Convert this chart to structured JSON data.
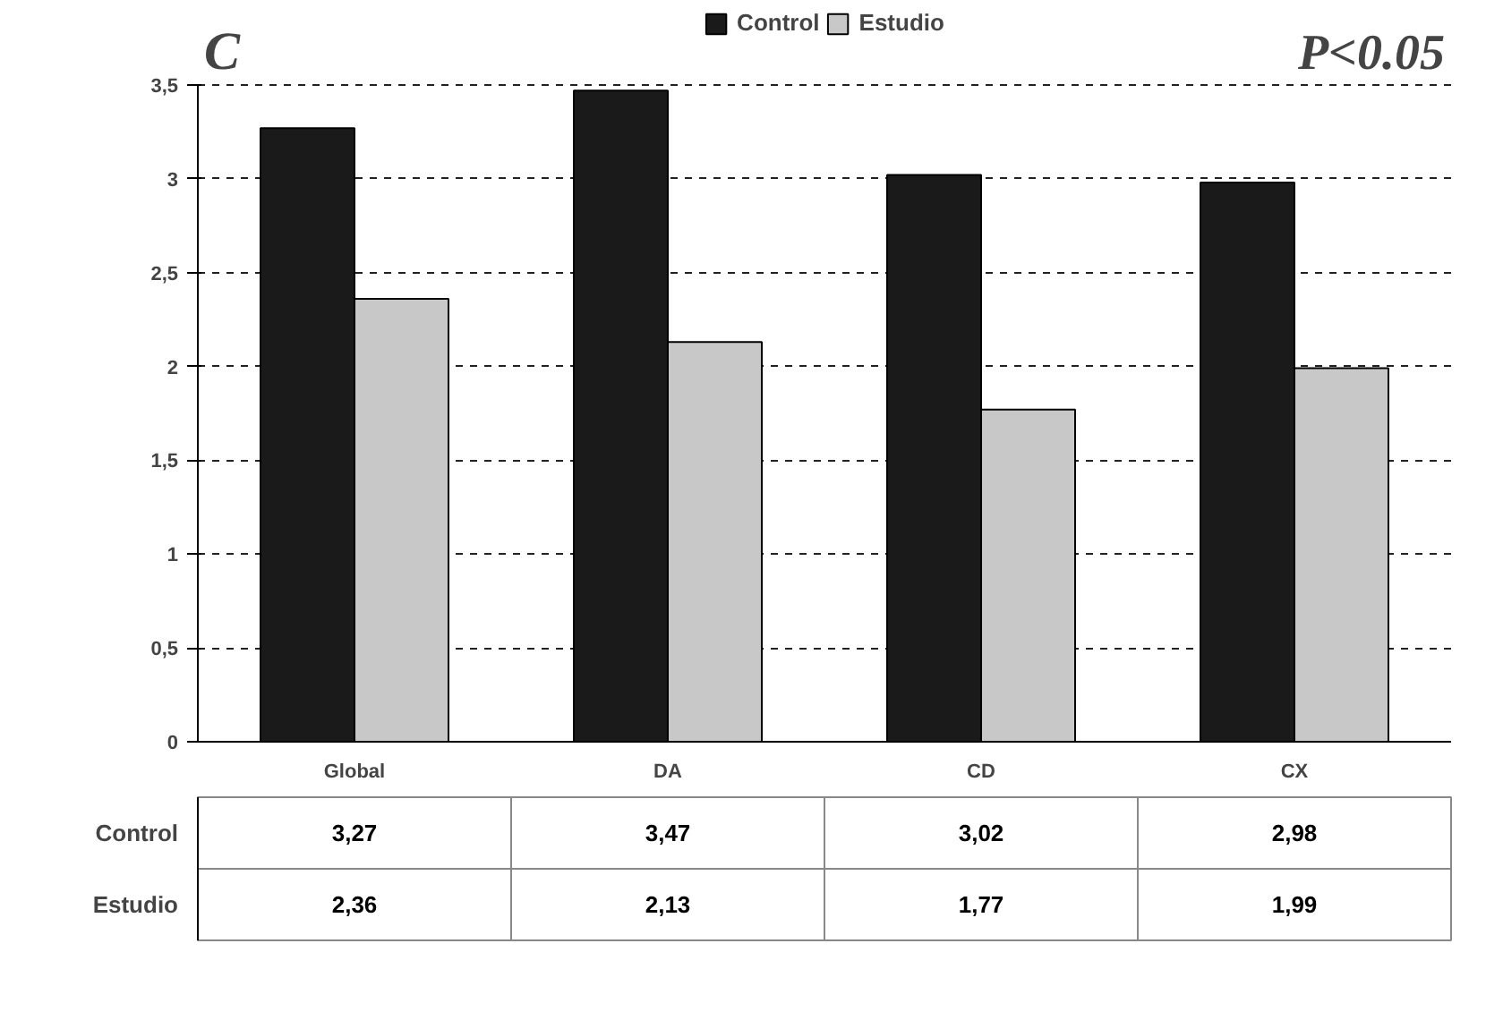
{
  "chart_data": {
    "type": "bar",
    "annotations": [
      "C",
      "P<0.05"
    ],
    "categories": [
      "Global",
      "DA",
      "CD",
      "CX"
    ],
    "series": [
      {
        "name": "Control",
        "color": "#1a1a1a",
        "values": [
          3.27,
          3.47,
          3.02,
          2.98
        ],
        "value_labels": [
          "3,27",
          "3,47",
          "3,02",
          "2,98"
        ]
      },
      {
        "name": "Estudio",
        "color": "#c8c8c8",
        "values": [
          2.36,
          2.13,
          1.77,
          1.99
        ],
        "value_labels": [
          "2,36",
          "2,13",
          "1,77",
          "1,99"
        ]
      }
    ],
    "ylim": [
      0,
      3.5
    ],
    "yticks": [
      0,
      {
        "value": 0.5,
        "label": "0,5"
      },
      1,
      {
        "value": 1.5,
        "label": "1,5"
      },
      2,
      {
        "value": 2.5,
        "label": "2,5"
      },
      3,
      {
        "value": 3.5,
        "label": "3,5"
      }
    ],
    "grid": "y",
    "legend": "top"
  }
}
